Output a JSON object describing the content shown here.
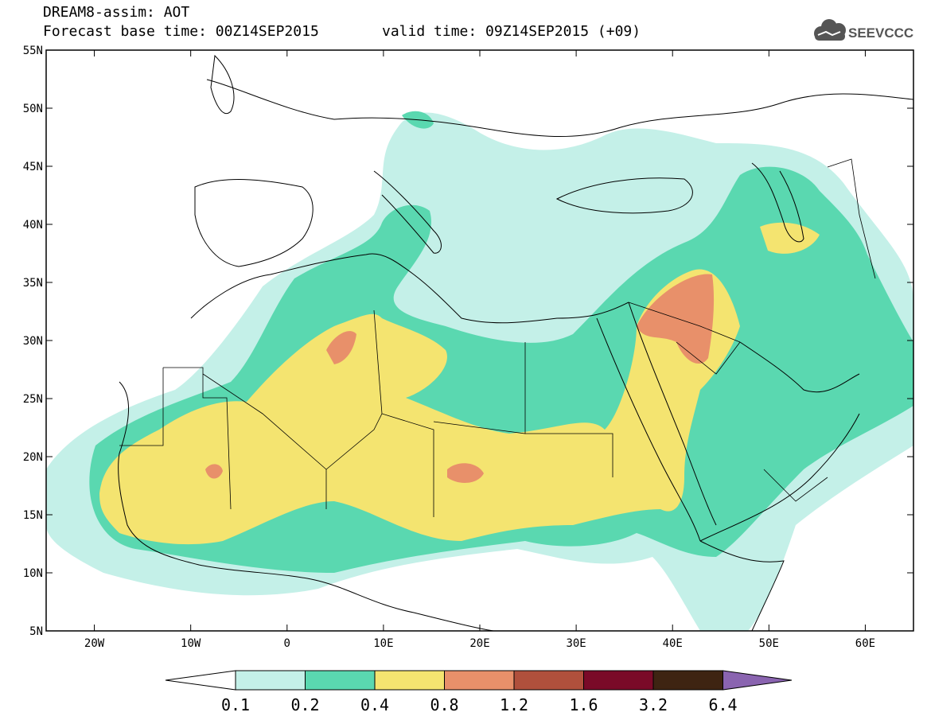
{
  "header": {
    "title": "DREAM8-assim: AOT",
    "base_time": "Forecast base time: 00Z14SEP2015",
    "valid_time": "valid time: 09Z14SEP2015 (+09)",
    "logo_text": "SEEVCCC"
  },
  "map": {
    "variable": "AOT",
    "projection": "lat-lon",
    "lon_range": [
      -25,
      65
    ],
    "lat_range": [
      5,
      55
    ],
    "x_ticks": [
      "20W",
      "10W",
      "0",
      "10E",
      "20E",
      "30E",
      "40E",
      "50E",
      "60E"
    ],
    "y_ticks": [
      "55N",
      "50N",
      "45N",
      "40N",
      "35N",
      "30N",
      "25N",
      "20N",
      "15N",
      "10N",
      "5N"
    ]
  },
  "legend": {
    "levels": [
      "0.1",
      "0.2",
      "0.4",
      "0.8",
      "1.2",
      "1.6",
      "3.2",
      "6.4"
    ],
    "colors": [
      "#ffffff",
      "#c4f0e8",
      "#5ad8b0",
      "#f4e470",
      "#e8906a",
      "#b0503c",
      "#7a0a28",
      "#3e2412",
      "#8a64b0"
    ]
  }
}
